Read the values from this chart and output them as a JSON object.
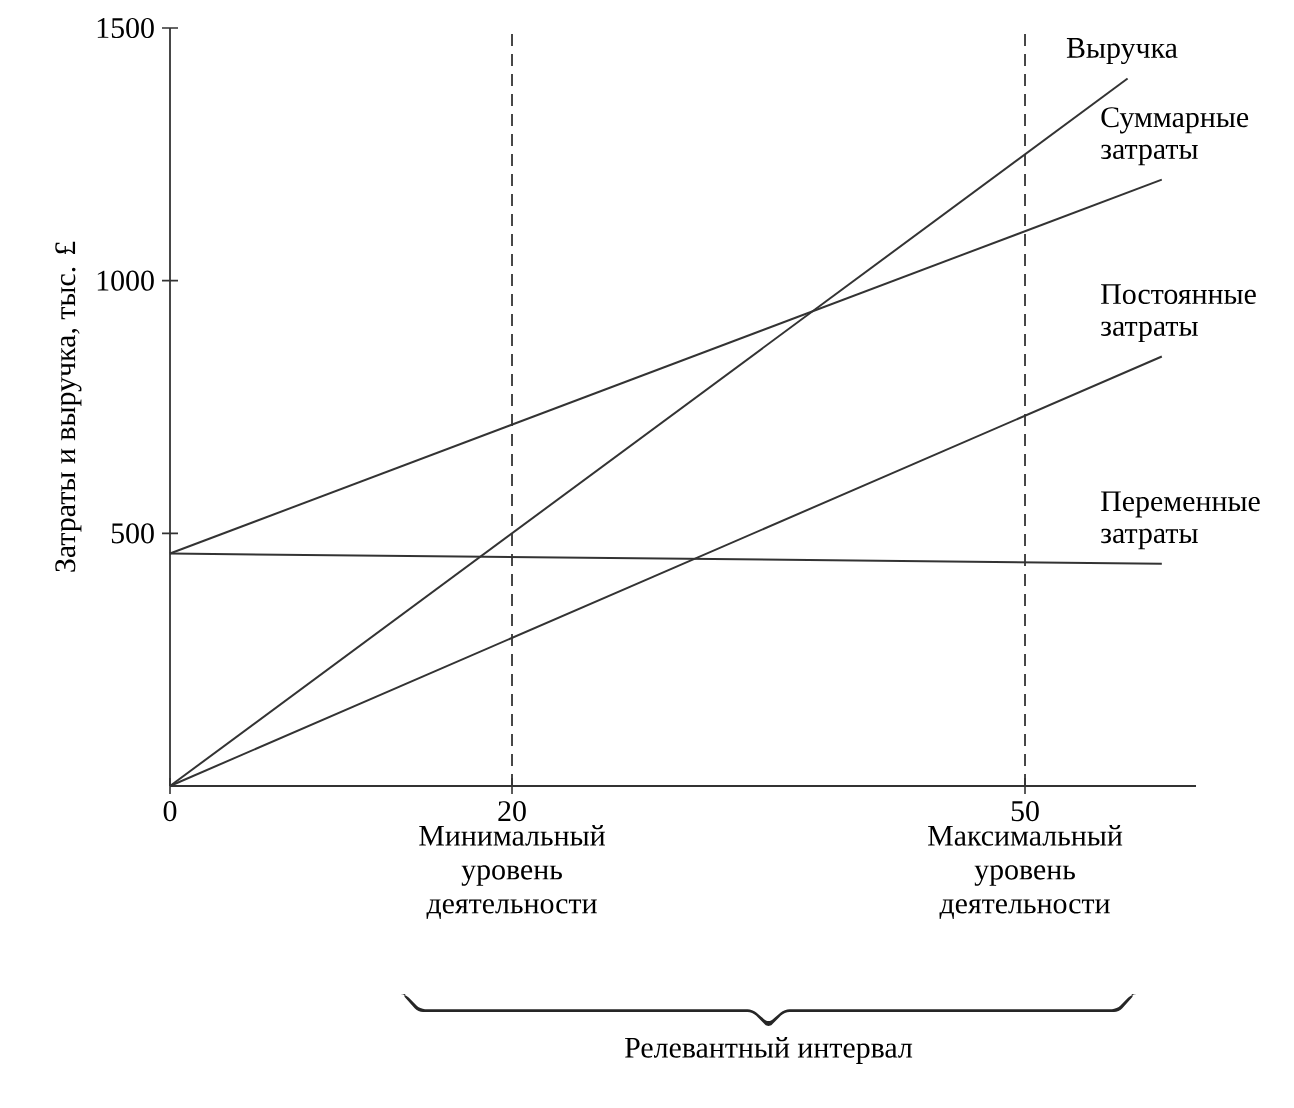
{
  "chart_data": {
    "type": "line",
    "ylabel": "Затраты и выручка, тыс. £",
    "xlim": [
      0,
      60
    ],
    "ylim": [
      0,
      1500
    ],
    "xticks": [
      0,
      20,
      50
    ],
    "yticks": [
      500,
      1000,
      1500
    ],
    "series": [
      {
        "name": "Выручка",
        "color": "#333333",
        "x": [
          0,
          56
        ],
        "values": [
          0,
          1400
        ]
      },
      {
        "name": "Суммарные затраты",
        "color": "#333333",
        "x": [
          0,
          58
        ],
        "values": [
          460,
          1200
        ]
      },
      {
        "name": "Постоянные затраты",
        "color": "#333333",
        "x": [
          0,
          58
        ],
        "values": [
          0,
          850
        ]
      },
      {
        "name": "Переменные затраты",
        "color": "#333333",
        "x": [
          0,
          58
        ],
        "values": [
          460,
          440
        ]
      }
    ],
    "ref_lines": [
      {
        "axis": "x",
        "value": 20,
        "label": "Минимальный уровень деятельности",
        "line_style": "dashed",
        "color": "#333333"
      },
      {
        "axis": "x",
        "value": 50,
        "label": "Максимальный уровень деятельности",
        "line_style": "dashed",
        "color": "#333333"
      }
    ],
    "annotations": [
      "Релевантный интервал"
    ],
    "grid": false,
    "marker": "none",
    "line_style": "solid"
  }
}
